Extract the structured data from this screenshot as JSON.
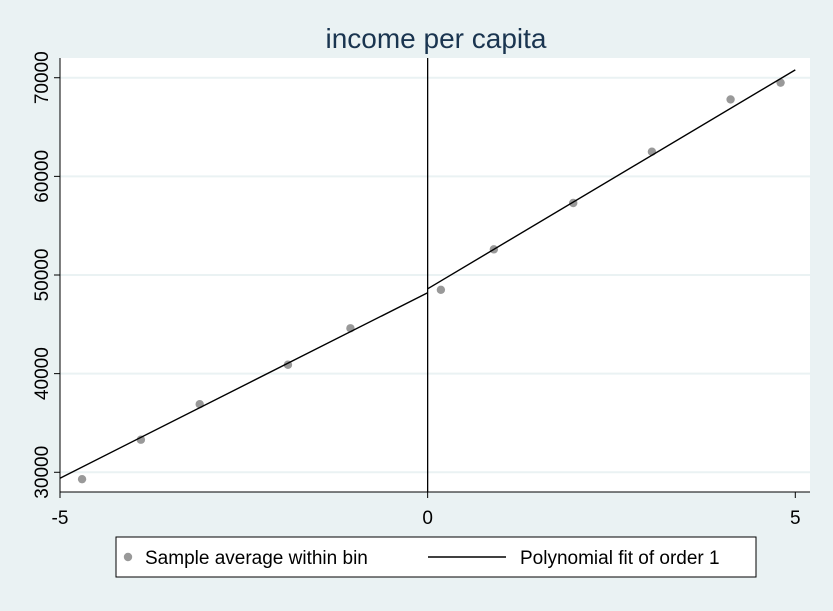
{
  "chart_data": {
    "type": "scatter",
    "title": "income per capita",
    "xlabel": "",
    "ylabel": "",
    "xlim": [
      -5,
      5.2
    ],
    "ylim": [
      28000,
      72000
    ],
    "xticks": [
      -5,
      0,
      5
    ],
    "yticks": [
      30000,
      40000,
      50000,
      60000,
      70000
    ],
    "grid": true,
    "cutoff_x": 0,
    "legend": {
      "position": "bottom"
    },
    "series": [
      {
        "name": "Sample average within bin",
        "kind": "scatter",
        "color": "#999999",
        "points": [
          [
            -4.7,
            29300
          ],
          [
            -3.9,
            33300
          ],
          [
            -3.1,
            36900
          ],
          [
            -1.9,
            40900
          ],
          [
            -1.05,
            44600
          ],
          [
            0.18,
            48500
          ],
          [
            0.9,
            52600
          ],
          [
            1.98,
            57300
          ],
          [
            3.05,
            62500
          ],
          [
            4.12,
            67800
          ],
          [
            4.8,
            69500
          ]
        ]
      },
      {
        "name": "Polynomial fit of order 1",
        "kind": "line",
        "color": "#000000",
        "segments": [
          [
            [
              -5,
              29400
            ],
            [
              0,
              48200
            ]
          ],
          [
            [
              0,
              48600
            ],
            [
              5,
              70800
            ]
          ]
        ]
      }
    ]
  }
}
